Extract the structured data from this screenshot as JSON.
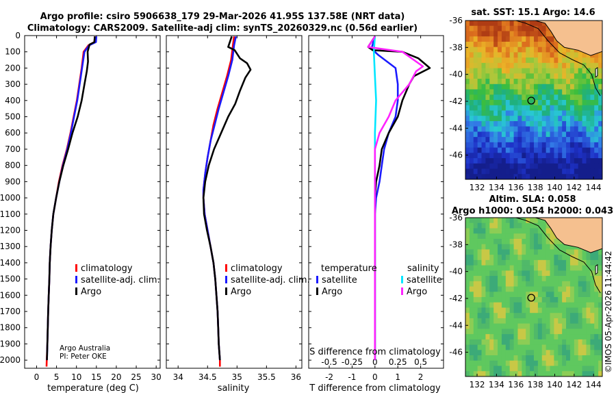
{
  "header": {
    "line1": "Argo profile: csiro 5906638_179 29-Mar-2026 41.95S 137.58E (NRT data)",
    "line2": "Climatology: CARS2009. Satellite-adj clim: synTS_20260329.nc (0.56d earlier)"
  },
  "credits": {
    "line1": "Argo Australia",
    "line2": "PI: Peter OKE"
  },
  "watermark": "©IMOS 05-Apr-2026 11:44:42",
  "colors": {
    "climatology": "#ff0000",
    "satellite": "#1a1aff",
    "argo": "#000000",
    "cyan": "#00e6ff",
    "magenta": "#ff22ff",
    "land": "#f5c08f"
  },
  "legends": {
    "temp": [
      "climatology",
      "satellite-adj. clim.",
      "Argo"
    ],
    "sal": [
      "climatology",
      "satellite-adj. clim.",
      "Argo"
    ],
    "diff": {
      "temp_header": "temperature",
      "sal_header": "salinity",
      "satellite": "satellite",
      "argo": "Argo"
    }
  },
  "maps": {
    "sst": {
      "title": "sat. SST: 15.1 Argo: 14.6",
      "lon_ticks": [
        "132",
        "134",
        "136",
        "138",
        "140",
        "142",
        "144"
      ],
      "lat_ticks": [
        "-36",
        "-38",
        "-40",
        "-42",
        "-44",
        "-46"
      ],
      "float_lon": 137.58,
      "float_lat": -41.95
    },
    "sla": {
      "title1": "Altim. SLA: 0.058",
      "title2": "Argo h1000: 0.054 h2000: 0.043",
      "lon_ticks": [
        "132",
        "134",
        "136",
        "138",
        "140",
        "142",
        "144"
      ],
      "lat_ticks": [
        "-36",
        "-38",
        "-40",
        "-42",
        "-44",
        "-46"
      ],
      "float_lon": 137.58,
      "float_lat": -41.95
    }
  },
  "chart_data": [
    {
      "type": "line",
      "title": "",
      "xlabel": "temperature (deg C)",
      "ylabel": "",
      "xlim": [
        -3,
        31
      ],
      "ylim": [
        2050,
        0
      ],
      "xticks": [
        "0",
        "5",
        "10",
        "15",
        "20",
        "25",
        "30"
      ],
      "yticks": [
        "0",
        "100",
        "200",
        "300",
        "400",
        "500",
        "600",
        "700",
        "800",
        "900",
        "1000",
        "1100",
        "1200",
        "1300",
        "1400",
        "1500",
        "1600",
        "1700",
        "1800",
        "1900",
        "2000"
      ],
      "series": [
        {
          "name": "climatology",
          "color": "#ff0000",
          "points": [
            [
              14.6,
              5
            ],
            [
              14.5,
              40
            ],
            [
              13.0,
              60
            ],
            [
              11.8,
              100
            ],
            [
              11.3,
              200
            ],
            [
              10.7,
              300
            ],
            [
              10.1,
              400
            ],
            [
              9.3,
              500
            ],
            [
              8.5,
              600
            ],
            [
              7.6,
              700
            ],
            [
              6.5,
              800
            ],
            [
              5.6,
              900
            ],
            [
              4.9,
              1000
            ],
            [
              4.2,
              1100
            ],
            [
              3.8,
              1200
            ],
            [
              3.5,
              1300
            ],
            [
              3.3,
              1400
            ],
            [
              3.2,
              1500
            ],
            [
              3.05,
              1600
            ],
            [
              2.9,
              1700
            ],
            [
              2.8,
              1800
            ],
            [
              2.7,
              1900
            ],
            [
              2.55,
              2000
            ],
            [
              2.5,
              2040
            ]
          ]
        },
        {
          "name": "satellite-adj. clim.",
          "color": "#1a1aff",
          "points": [
            [
              15.0,
              5
            ],
            [
              14.9,
              40
            ],
            [
              13.2,
              60
            ],
            [
              12.0,
              100
            ],
            [
              11.4,
              200
            ],
            [
              10.8,
              300
            ],
            [
              10.2,
              400
            ],
            [
              9.4,
              500
            ],
            [
              8.6,
              600
            ],
            [
              7.7,
              700
            ],
            [
              6.6,
              800
            ],
            [
              5.7,
              900
            ],
            [
              4.9,
              1000
            ],
            [
              4.2,
              1100
            ],
            [
              3.8,
              1200
            ],
            [
              3.5,
              1300
            ],
            [
              3.3,
              1400
            ],
            [
              3.2,
              1500
            ],
            [
              3.05,
              1600
            ],
            [
              2.9,
              1700
            ],
            [
              2.8,
              1800
            ],
            [
              2.7,
              1900
            ],
            [
              2.6,
              2000
            ]
          ]
        },
        {
          "name": "Argo",
          "color": "#000000",
          "points": [
            [
              14.6,
              5
            ],
            [
              14.5,
              40
            ],
            [
              13.3,
              55
            ],
            [
              12.8,
              100
            ],
            [
              12.9,
              160
            ],
            [
              12.6,
              220
            ],
            [
              12.0,
              300
            ],
            [
              11.3,
              400
            ],
            [
              10.3,
              500
            ],
            [
              9.0,
              600
            ],
            [
              7.9,
              700
            ],
            [
              6.7,
              800
            ],
            [
              5.7,
              900
            ],
            [
              4.9,
              1000
            ],
            [
              4.2,
              1100
            ],
            [
              3.8,
              1200
            ],
            [
              3.5,
              1300
            ],
            [
              3.3,
              1400
            ],
            [
              3.2,
              1500
            ],
            [
              3.05,
              1600
            ],
            [
              2.9,
              1700
            ],
            [
              2.8,
              1800
            ],
            [
              2.7,
              1900
            ],
            [
              2.6,
              2000
            ]
          ]
        }
      ]
    },
    {
      "type": "line",
      "title": "",
      "xlabel": "salinity",
      "ylabel": "",
      "xlim": [
        33.8,
        36.1
      ],
      "ylim": [
        2050,
        0
      ],
      "xticks": [
        "34",
        "34.5",
        "35",
        "35.5",
        "36"
      ],
      "series": [
        {
          "name": "climatology",
          "color": "#ff0000",
          "points": [
            [
              34.95,
              5
            ],
            [
              34.93,
              60
            ],
            [
              34.9,
              150
            ],
            [
              34.83,
              250
            ],
            [
              34.75,
              350
            ],
            [
              34.67,
              450
            ],
            [
              34.6,
              550
            ],
            [
              34.55,
              650
            ],
            [
              34.5,
              750
            ],
            [
              34.46,
              850
            ],
            [
              34.43,
              950
            ],
            [
              34.43,
              1000
            ],
            [
              34.45,
              1100
            ],
            [
              34.5,
              1200
            ],
            [
              34.55,
              1300
            ],
            [
              34.6,
              1400
            ],
            [
              34.63,
              1500
            ],
            [
              34.65,
              1600
            ],
            [
              34.67,
              1700
            ],
            [
              34.68,
              1800
            ],
            [
              34.69,
              1900
            ],
            [
              34.71,
              2000
            ],
            [
              34.71,
              2040
            ]
          ]
        },
        {
          "name": "satellite-adj. clim.",
          "color": "#1a1aff",
          "points": [
            [
              34.98,
              5
            ],
            [
              34.95,
              60
            ],
            [
              34.92,
              150
            ],
            [
              34.85,
              250
            ],
            [
              34.77,
              350
            ],
            [
              34.69,
              450
            ],
            [
              34.62,
              550
            ],
            [
              34.55,
              650
            ],
            [
              34.5,
              750
            ],
            [
              34.46,
              850
            ],
            [
              34.43,
              950
            ],
            [
              34.43,
              1000
            ],
            [
              34.45,
              1100
            ],
            [
              34.5,
              1200
            ],
            [
              34.55,
              1300
            ],
            [
              34.6,
              1400
            ],
            [
              34.63,
              1500
            ],
            [
              34.65,
              1600
            ],
            [
              34.67,
              1700
            ],
            [
              34.68,
              1800
            ],
            [
              34.69,
              1900
            ],
            [
              34.71,
              2000
            ]
          ]
        },
        {
          "name": "Argo",
          "color": "#000000",
          "points": [
            [
              34.91,
              5
            ],
            [
              34.85,
              70
            ],
            [
              34.96,
              90
            ],
            [
              35.05,
              140
            ],
            [
              35.17,
              170
            ],
            [
              35.23,
              210
            ],
            [
              35.14,
              260
            ],
            [
              35.05,
              340
            ],
            [
              34.97,
              420
            ],
            [
              34.85,
              500
            ],
            [
              34.73,
              600
            ],
            [
              34.61,
              700
            ],
            [
              34.52,
              800
            ],
            [
              34.46,
              900
            ],
            [
              34.43,
              1000
            ],
            [
              34.44,
              1100
            ],
            [
              34.49,
              1200
            ],
            [
              34.55,
              1300
            ],
            [
              34.6,
              1400
            ],
            [
              34.63,
              1500
            ],
            [
              34.65,
              1600
            ],
            [
              34.67,
              1700
            ],
            [
              34.68,
              1800
            ],
            [
              34.69,
              1900
            ],
            [
              34.71,
              2000
            ]
          ]
        }
      ]
    },
    {
      "type": "line",
      "title": "",
      "xlabel": "T difference from climatology",
      "xlabel2": "S difference from climatology",
      "ylabel": "",
      "xlim": [
        -2.9,
        3.0
      ],
      "ylim": [
        2050,
        0
      ],
      "xticks": [
        "-2",
        "-1",
        "0",
        "1",
        "2"
      ],
      "xticks_s": [
        "-0.5",
        "-0.25",
        "0",
        "0.25",
        "0.5"
      ],
      "series": [
        {
          "name": "T satellite",
          "color": "#1a1aff",
          "points": [
            [
              0.0,
              5
            ],
            [
              -0.15,
              80
            ],
            [
              0.15,
              120
            ],
            [
              0.9,
              200
            ],
            [
              1.0,
              300
            ],
            [
              1.0,
              400
            ],
            [
              0.9,
              500
            ],
            [
              0.6,
              600
            ],
            [
              0.4,
              700
            ],
            [
              0.3,
              800
            ],
            [
              0.2,
              900
            ],
            [
              0.05,
              1000
            ],
            [
              0.0,
              1100
            ],
            [
              0.0,
              1500
            ],
            [
              0.0,
              2000
            ]
          ]
        },
        {
          "name": "T Argo",
          "color": "#000000",
          "points": [
            [
              0.0,
              5
            ],
            [
              -0.3,
              70
            ],
            [
              -0.1,
              90
            ],
            [
              1.2,
              100
            ],
            [
              1.9,
              140
            ],
            [
              2.4,
              200
            ],
            [
              1.7,
              250
            ],
            [
              1.5,
              300
            ],
            [
              1.2,
              400
            ],
            [
              1.0,
              500
            ],
            [
              0.6,
              600
            ],
            [
              0.3,
              700
            ],
            [
              0.2,
              800
            ],
            [
              0.05,
              900
            ],
            [
              0.0,
              1000
            ],
            [
              0.0,
              1500
            ],
            [
              0.0,
              2000
            ]
          ]
        },
        {
          "name": "S satellite",
          "color": "#00e6ff",
          "points": [
            [
              0.0,
              5
            ],
            [
              -0.05,
              100
            ],
            [
              0.0,
              250
            ],
            [
              0.05,
              400
            ],
            [
              0.0,
              600
            ],
            [
              0.0,
              1000
            ],
            [
              0.0,
              1500
            ],
            [
              0.0,
              2000
            ]
          ]
        },
        {
          "name": "S Argo",
          "color": "#ff22ff",
          "points": [
            [
              0.0,
              5
            ],
            [
              -0.3,
              70
            ],
            [
              1.2,
              100
            ],
            [
              2.1,
              190
            ],
            [
              1.8,
              220
            ],
            [
              1.5,
              300
            ],
            [
              0.9,
              400
            ],
            [
              0.6,
              500
            ],
            [
              0.2,
              600
            ],
            [
              0.0,
              700
            ],
            [
              0.0,
              1000
            ],
            [
              0.0,
              2000
            ]
          ]
        }
      ]
    }
  ]
}
